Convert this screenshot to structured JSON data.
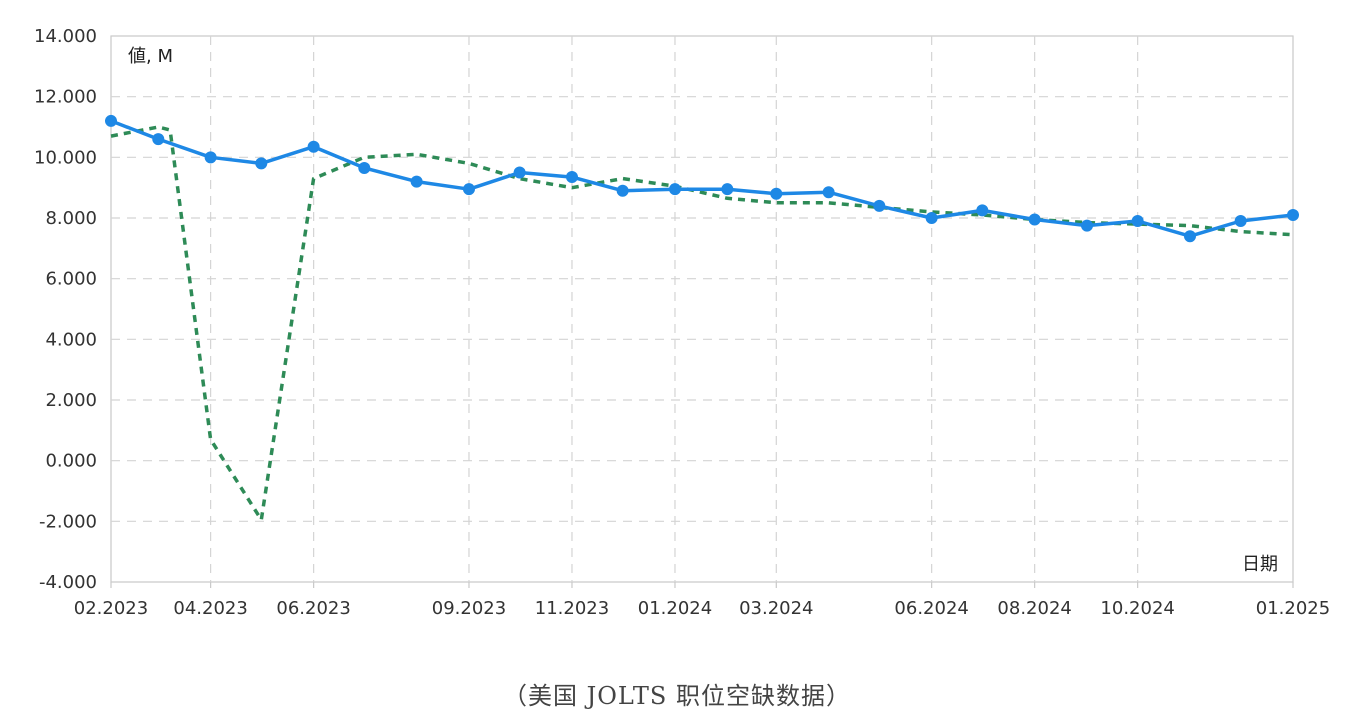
{
  "chart_data": {
    "type": "line",
    "ylabel": "値, M",
    "xlabel": "日期",
    "ylim": [
      -4000,
      14000
    ],
    "y_ticks": [
      "14.000",
      "12.000",
      "10.000",
      "8.000",
      "6.000",
      "4.000",
      "2.000",
      "0.000",
      "-2.000",
      "-4.000"
    ],
    "x_range": [
      "2023-02-01",
      "2025-01-01"
    ],
    "x_ticks": [
      {
        "label": "02.2023",
        "date": "2023-02-01"
      },
      {
        "label": "04.2023",
        "date": "2023-04-01"
      },
      {
        "label": "06.2023",
        "date": "2023-06-01"
      },
      {
        "label": "09.2023",
        "date": "2023-09-01"
      },
      {
        "label": "11.2023",
        "date": "2023-11-01"
      },
      {
        "label": "01.2024",
        "date": "2024-01-01"
      },
      {
        "label": "03.2024",
        "date": "2024-03-01"
      },
      {
        "label": "06.2024",
        "date": "2024-06-01"
      },
      {
        "label": "08.2024",
        "date": "2024-08-01"
      },
      {
        "label": "10.2024",
        "date": "2024-10-01"
      },
      {
        "label": "01.2025",
        "date": "2025-01-01"
      }
    ],
    "grid": true,
    "series": [
      {
        "style": "solid-markers",
        "color": "#1e88e5",
        "x": [
          "2023-02-01",
          "2023-03-01",
          "2023-04-01",
          "2023-05-01",
          "2023-06-01",
          "2023-07-01",
          "2023-08-01",
          "2023-09-01",
          "2023-10-01",
          "2023-11-01",
          "2023-12-01",
          "2024-01-01",
          "2024-02-01",
          "2024-03-01",
          "2024-04-01",
          "2024-05-01",
          "2024-06-01",
          "2024-07-01",
          "2024-08-01",
          "2024-09-01",
          "2024-10-01",
          "2024-11-01",
          "2024-12-01",
          "2025-01-01"
        ],
        "values": [
          11200,
          10600,
          10000,
          9800,
          10350,
          9650,
          9200,
          8950,
          9500,
          9350,
          8900,
          8950,
          8950,
          8800,
          8850,
          8400,
          8000,
          8250,
          7950,
          7750,
          7900,
          7400,
          7900,
          8100
        ]
      },
      {
        "style": "dashed",
        "color": "#2e8b57",
        "x": [
          "2023-02-01",
          "2023-03-01",
          "2023-03-08",
          "2023-04-01",
          "2023-05-01",
          "2023-06-01",
          "2023-07-01",
          "2023-08-01",
          "2023-09-01",
          "2023-10-01",
          "2023-11-01",
          "2023-12-01",
          "2024-01-01",
          "2024-02-01",
          "2024-03-01",
          "2024-04-01",
          "2024-05-01",
          "2024-06-01",
          "2024-07-01",
          "2024-08-01",
          "2024-09-01",
          "2024-10-01",
          "2024-11-01",
          "2024-12-01",
          "2025-01-01"
        ],
        "values": [
          10700,
          11000,
          10900,
          700,
          -1950,
          9300,
          10000,
          10100,
          9800,
          9300,
          9000,
          9300,
          9050,
          8650,
          8500,
          8500,
          8350,
          8200,
          8100,
          7950,
          7850,
          7800,
          7750,
          7550,
          7450
        ]
      }
    ]
  },
  "caption": "（美国 JOLTS 职位空缺数据）"
}
